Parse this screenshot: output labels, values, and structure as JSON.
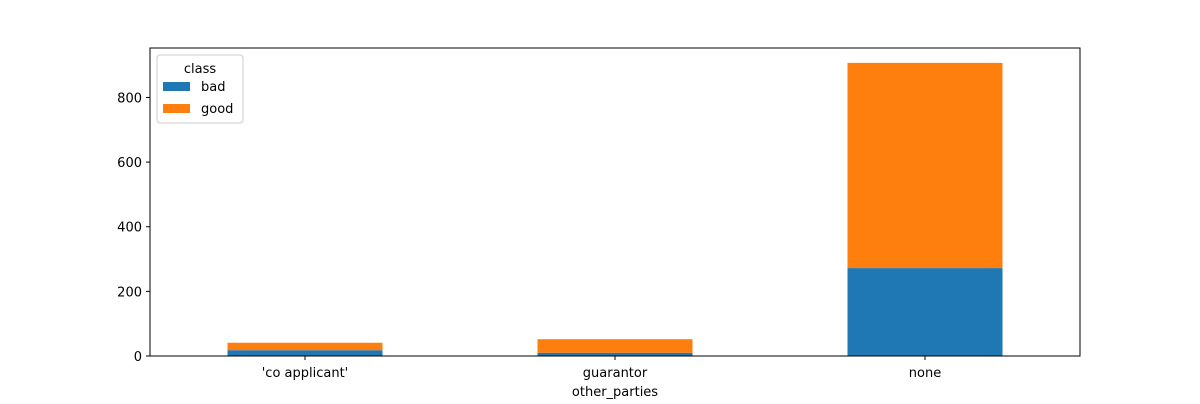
{
  "chart_data": {
    "type": "bar",
    "stacked": true,
    "title": "",
    "xlabel": "other_parties",
    "ylabel": "",
    "categories": [
      "'co applicant'",
      "guarantor",
      "none"
    ],
    "series": [
      {
        "name": "bad",
        "values": [
          18,
          10,
          272
        ],
        "color": "#1f77b4"
      },
      {
        "name": "good",
        "values": [
          23,
          42,
          635
        ],
        "color": "#ff7f0e"
      }
    ],
    "ylim": [
      0,
      953
    ],
    "yticks": [
      0,
      200,
      400,
      600,
      800
    ],
    "grid": false,
    "legend": {
      "title": "class",
      "position": "top-left"
    }
  }
}
